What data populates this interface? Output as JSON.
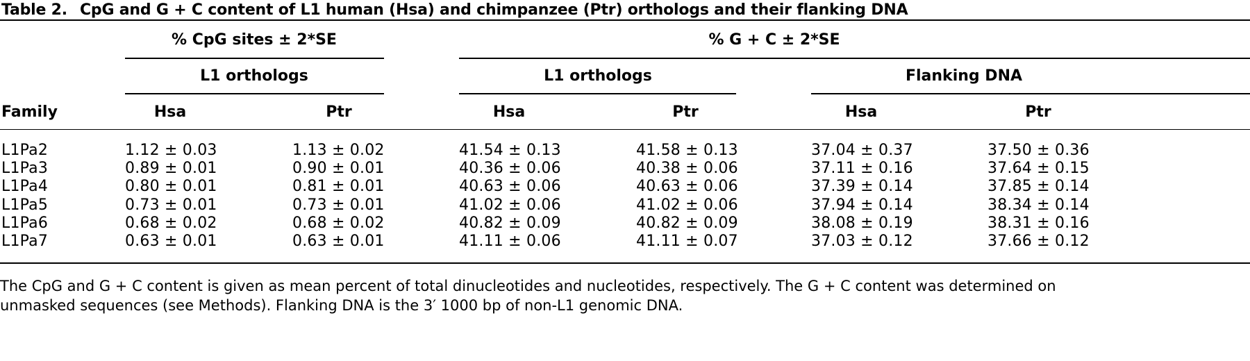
{
  "table": {
    "label": "Table 2.",
    "title": "CpG and G + C content of L1 human (Hsa) and chimpanzee (Ptr) orthologs and their flanking DNA",
    "group_headers": {
      "cpg": "% CpG sites ± 2*SE",
      "gc": "% G + C ± 2*SE"
    },
    "sub_headers": {
      "cpg_orthologs": "L1 orthologs",
      "gc_orthologs": "L1 orthologs",
      "gc_flanking": "Flanking DNA"
    },
    "columns": [
      "Family",
      "Hsa",
      "Ptr",
      "Hsa",
      "Ptr",
      "Hsa",
      "Ptr"
    ],
    "rows": [
      [
        "L1Pa2",
        "1.12 ± 0.03",
        "1.13 ± 0.02",
        "41.54 ± 0.13",
        "41.58 ± 0.13",
        "37.04 ± 0.37",
        "37.50 ± 0.36"
      ],
      [
        "L1Pa3",
        "0.89 ± 0.01",
        "0.90 ± 0.01",
        "40.36 ± 0.06",
        "40.38 ± 0.06",
        "37.11 ± 0.16",
        "37.64 ± 0.15"
      ],
      [
        "L1Pa4",
        "0.80 ± 0.01",
        "0.81 ± 0.01",
        "40.63 ± 0.06",
        "40.63 ± 0.06",
        "37.39 ± 0.14",
        "37.85 ± 0.14"
      ],
      [
        "L1Pa5",
        "0.73 ± 0.01",
        "0.73 ± 0.01",
        "41.02 ± 0.06",
        "41.02 ± 0.06",
        "37.94 ± 0.14",
        "38.34 ± 0.14"
      ],
      [
        "L1Pa6",
        "0.68 ± 0.02",
        "0.68 ± 0.02",
        "40.82 ± 0.09",
        "40.82 ± 0.09",
        "38.08 ± 0.19",
        "38.31 ± 0.16"
      ],
      [
        "L1Pa7",
        "0.63 ± 0.01",
        "0.63 ± 0.01",
        "41.11 ± 0.06",
        "41.11 ± 0.07",
        "37.03 ± 0.12",
        "37.66 ± 0.12"
      ]
    ],
    "footnote": [
      "The CpG and G + C content is given as mean percent of total dinucleotides and nucleotides, respectively. The G + C content was determined on",
      "unmasked sequences (see Methods). Flanking DNA is the 3′ 1000 bp of non-L1 genomic DNA."
    ]
  }
}
